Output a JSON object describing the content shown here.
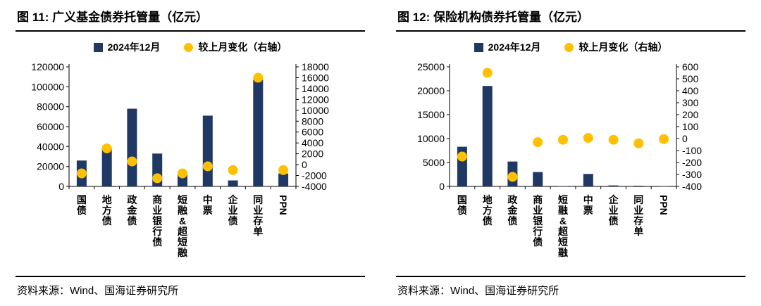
{
  "panels": [
    {
      "title": "图 11:  广义基金债券托管量（亿元）",
      "legend_bar": "2024年12月",
      "legend_dot": "较上月变化（右轴）",
      "source": "资料来源：Wind、国海证券研究所"
    },
    {
      "title": "图 12:  保险机构债券托管量（亿元）",
      "legend_bar": "2024年12月",
      "legend_dot": "较上月变化（右轴）",
      "source": "资料来源：Wind、国海证券研究所"
    }
  ],
  "chart_data": [
    {
      "type": "bar",
      "title": "广义基金债券托管量（亿元）",
      "categories": [
        "国债",
        "地方债",
        "政金债",
        "商业银行债",
        "短融&超短融",
        "中票",
        "企业债",
        "同业存单",
        "PPN"
      ],
      "series": [
        {
          "name": "2024年12月",
          "type": "bar",
          "axis": "left",
          "values": [
            26000,
            38000,
            78000,
            33000,
            14000,
            71000,
            6000,
            107000,
            13000
          ]
        },
        {
          "name": "较上月变化（右轴）",
          "type": "scatter",
          "axis": "right",
          "values": [
            -1600,
            3000,
            600,
            -2500,
            -1600,
            -300,
            -1000,
            16000,
            -1000
          ]
        }
      ],
      "left_axis": {
        "min": 0,
        "max": 120000,
        "step": 20000
      },
      "right_axis": {
        "min": -4000,
        "max": 18000,
        "step": 2000
      },
      "colors": {
        "bar": "#1F3864",
        "dot": "#FFC000"
      },
      "grid": false,
      "legend_position": "top"
    },
    {
      "type": "bar",
      "title": "保险机构债券托管量（亿元）",
      "categories": [
        "国债",
        "地方债",
        "政金债",
        "商业银行债",
        "短融&超短融",
        "中票",
        "企业债",
        "同业存单",
        "PPN"
      ],
      "series": [
        {
          "name": "2024年12月",
          "type": "bar",
          "axis": "left",
          "values": [
            8300,
            21000,
            5200,
            3000,
            50,
            2600,
            200,
            150,
            50
          ]
        },
        {
          "name": "较上月变化（右轴）",
          "type": "scatter",
          "axis": "right",
          "values": [
            -150,
            550,
            -320,
            -30,
            -10,
            5,
            -10,
            -40,
            -5
          ]
        }
      ],
      "left_axis": {
        "min": 0,
        "max": 25000,
        "step": 5000
      },
      "right_axis": {
        "min": -400,
        "max": 600,
        "step": 100
      },
      "colors": {
        "bar": "#1F3864",
        "dot": "#FFC000"
      },
      "grid": false,
      "legend_position": "top"
    }
  ]
}
